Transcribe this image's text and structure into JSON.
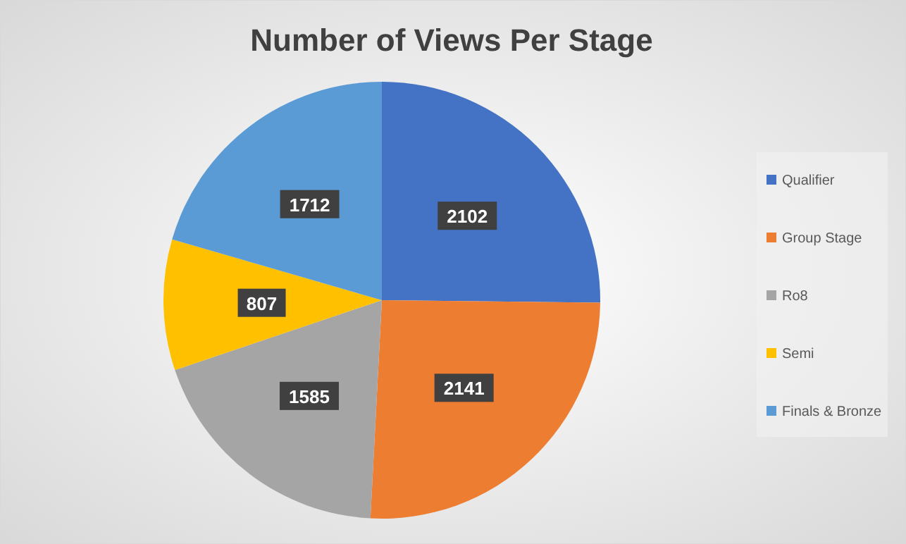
{
  "chart_data": {
    "type": "pie",
    "title": "Number of Views Per Stage",
    "categories": [
      "Qualifier",
      "Group Stage",
      "Ro8",
      "Semi",
      "Finals & Bronze"
    ],
    "values": [
      2102,
      2141,
      1585,
      807,
      1712
    ],
    "colors": [
      "#4472c4",
      "#ed7d31",
      "#a5a5a5",
      "#ffc000",
      "#5b9bd5"
    ],
    "data_labels": true,
    "legend": "right"
  }
}
